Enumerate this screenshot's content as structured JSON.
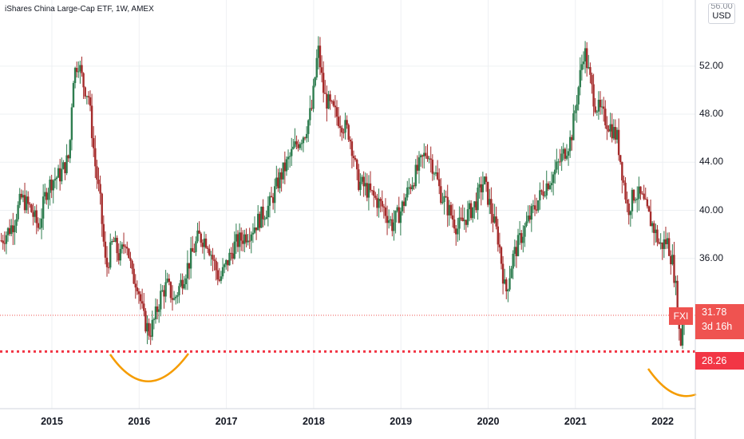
{
  "header": {
    "title": "iShares China Large-Cap ETF, 1W, AMEX"
  },
  "price_scale": {
    "currency": "USD",
    "top_cut_label": "56.00"
  },
  "last_price": {
    "symbol": "FXI",
    "value": "31.78",
    "countdown": "3d 16h"
  },
  "horizontal_level": {
    "value": "28.26"
  },
  "colors": {
    "up": "#26a69a",
    "down": "#ef5350",
    "up_body": "#2e7d4f",
    "down_body": "#a52b2b",
    "level_line": "#f23645",
    "curve": "#f59c00",
    "grid": "#eef0f3"
  },
  "chart_data": {
    "type": "candlestick",
    "title": "iShares China Large-Cap ETF, 1W, AMEX",
    "xlabel": "",
    "ylabel": "",
    "ylim": [
      23.5,
      57.5
    ],
    "y_ticks": [
      "36.00",
      "40.00",
      "44.00",
      "48.00",
      "52.00"
    ],
    "x_ticks": [
      "2015",
      "2016",
      "2017",
      "2018",
      "2019",
      "2020",
      "2021",
      "2022"
    ],
    "x_tick_years": [
      2015,
      2016,
      2017,
      2018,
      2019,
      2020,
      2021,
      2022
    ],
    "horizontal_line": 28.26,
    "last_value": 31.78,
    "close_path": [
      [
        2014.42,
        37.5
      ],
      [
        2014.55,
        38.8
      ],
      [
        2014.65,
        41.0
      ],
      [
        2014.75,
        40.2
      ],
      [
        2014.85,
        38.5
      ],
      [
        2014.93,
        41.5
      ],
      [
        2015.0,
        42.5
      ],
      [
        2015.1,
        43.0
      ],
      [
        2015.2,
        44.5
      ],
      [
        2015.24,
        51.0
      ],
      [
        2015.3,
        52.5
      ],
      [
        2015.36,
        50.5
      ],
      [
        2015.42,
        49.5
      ],
      [
        2015.5,
        43.5
      ],
      [
        2015.55,
        41.0
      ],
      [
        2015.62,
        35.0
      ],
      [
        2015.7,
        37.5
      ],
      [
        2015.78,
        36.0
      ],
      [
        2015.85,
        37.8
      ],
      [
        2015.92,
        34.5
      ],
      [
        2015.98,
        34.0
      ],
      [
        2016.05,
        31.0
      ],
      [
        2016.12,
        29.8
      ],
      [
        2016.18,
        31.0
      ],
      [
        2016.25,
        33.0
      ],
      [
        2016.32,
        33.8
      ],
      [
        2016.4,
        32.5
      ],
      [
        2016.48,
        34.0
      ],
      [
        2016.58,
        35.8
      ],
      [
        2016.68,
        37.8
      ],
      [
        2016.78,
        37.5
      ],
      [
        2016.85,
        35.8
      ],
      [
        2016.92,
        34.2
      ],
      [
        2017.0,
        35.5
      ],
      [
        2017.1,
        37.2
      ],
      [
        2017.2,
        37.8
      ],
      [
        2017.3,
        38.5
      ],
      [
        2017.4,
        39.5
      ],
      [
        2017.5,
        40.5
      ],
      [
        2017.6,
        42.5
      ],
      [
        2017.7,
        44.0
      ],
      [
        2017.8,
        45.5
      ],
      [
        2017.9,
        46.5
      ],
      [
        2017.98,
        48.5
      ],
      [
        2018.05,
        53.5
      ],
      [
        2018.12,
        49.5
      ],
      [
        2018.2,
        48.5
      ],
      [
        2018.3,
        47.5
      ],
      [
        2018.4,
        46.5
      ],
      [
        2018.45,
        45.0
      ],
      [
        2018.5,
        42.5
      ],
      [
        2018.6,
        41.8
      ],
      [
        2018.7,
        41.0
      ],
      [
        2018.8,
        40.2
      ],
      [
        2018.9,
        38.8
      ],
      [
        2019.0,
        40.0
      ],
      [
        2019.1,
        42.0
      ],
      [
        2019.2,
        43.5
      ],
      [
        2019.3,
        45.0
      ],
      [
        2019.38,
        43.5
      ],
      [
        2019.45,
        41.5
      ],
      [
        2019.55,
        40.0
      ],
      [
        2019.65,
        38.5
      ],
      [
        2019.75,
        39.5
      ],
      [
        2019.85,
        40.5
      ],
      [
        2019.95,
        42.5
      ],
      [
        2020.05,
        39.5
      ],
      [
        2020.12,
        37.5
      ],
      [
        2020.2,
        33.0
      ],
      [
        2020.28,
        36.0
      ],
      [
        2020.36,
        37.5
      ],
      [
        2020.45,
        39.0
      ],
      [
        2020.55,
        40.5
      ],
      [
        2020.65,
        42.0
      ],
      [
        2020.75,
        43.0
      ],
      [
        2020.85,
        44.5
      ],
      [
        2020.95,
        46.0
      ],
      [
        2021.02,
        49.5
      ],
      [
        2021.1,
        53.5
      ],
      [
        2021.15,
        51.5
      ],
      [
        2021.22,
        49.0
      ],
      [
        2021.3,
        48.0
      ],
      [
        2021.4,
        47.0
      ],
      [
        2021.48,
        46.0
      ],
      [
        2021.55,
        42.5
      ],
      [
        2021.6,
        40.0
      ],
      [
        2021.68,
        41.5
      ],
      [
        2021.76,
        41.0
      ],
      [
        2021.84,
        39.5
      ],
      [
        2021.9,
        38.5
      ],
      [
        2021.97,
        37.0
      ],
      [
        2022.05,
        37.5
      ],
      [
        2022.12,
        35.5
      ],
      [
        2022.18,
        31.5
      ],
      [
        2022.2,
        28.0
      ],
      [
        2022.22,
        30.5
      ],
      [
        2022.25,
        31.78
      ]
    ]
  }
}
